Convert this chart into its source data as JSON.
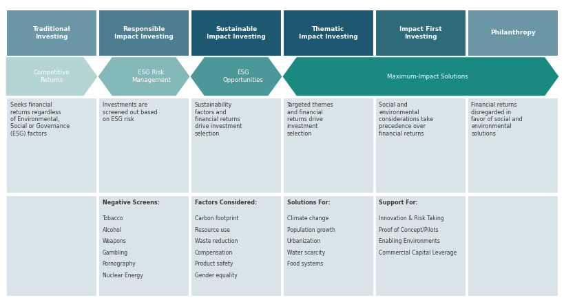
{
  "fig_width": 8.2,
  "fig_height": 4.36,
  "bg_color": "#ffffff",
  "header_labels": [
    "Traditional\nInvesting",
    "Responsible\nImpact Investing",
    "Sustainable\nImpact Investing",
    "Thematic\nImpact Investing",
    "Impact First\nInvesting",
    "Philanthropy"
  ],
  "header_colors": [
    "#6b96a6",
    "#4d7d8f",
    "#1e5870",
    "#1e5870",
    "#2d6b7a",
    "#6b96a6"
  ],
  "arrow_colors": [
    "#b5d5d5",
    "#85b8b8",
    "#4a9898",
    "#1a8a80"
  ],
  "arrow_labels": [
    "Competitive\nReturns",
    "ESG Risk\nManagement",
    "ESG\nOpportunities",
    "Maximum-Impact Solutions"
  ],
  "cell_bg": "#d8e4e8",
  "desc_texts": [
    "Seeks financial\nreturns regardless\nof Environmental,\nSocial or Governance\n(ESG) factors",
    "Investments are\nscreened out based\non ESG risk",
    "Sustainability\nfactors and\nfinancial returns\ndrive investment\nselection",
    "Targeted themes\nand financial\nreturns drive\ninvestment\nselection",
    "Social and\nenvironmental\nconsiderations take\nprecedence over\nfinancial returns",
    "Financial returns\ndisregarded in\nfavor of social and\nenvironmental\nsolutions"
  ],
  "bullet_headers": [
    "",
    "Negative Screens:",
    "Factors Considered:",
    "Solutions For:",
    "Support For:",
    ""
  ],
  "bullet_items": [
    [],
    [
      "Tobacco",
      "Alcohol",
      "Weapons",
      "Gambling",
      "Pornography",
      "Nuclear Energy"
    ],
    [
      "Carbon footprint",
      "Resource use",
      "Waste reduction",
      "Compensation",
      "Product safety",
      "Gender equality"
    ],
    [
      "Climate change",
      "Population growth",
      "Urbanization",
      "Water scarcity",
      "Food systems"
    ],
    [
      "Innovation & Risk Taking",
      "Proof of Concept/Pilots",
      "Enabling Environments",
      "Commercial Capital Leverage"
    ],
    []
  ]
}
